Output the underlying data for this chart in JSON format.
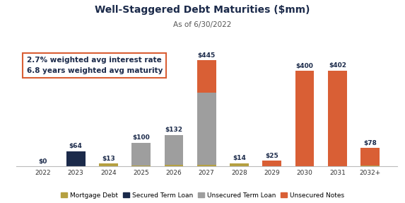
{
  "title": "Well-Staggered Debt Maturities ($mm)",
  "subtitle": "As of 6/30/2022",
  "categories": [
    "2022",
    "2023",
    "2024",
    "2025",
    "2026",
    "2027",
    "2028",
    "2029",
    "2030",
    "2031",
    "2032+"
  ],
  "mortgage_debt": [
    0,
    0,
    13,
    5,
    7,
    8,
    14,
    0,
    0,
    2,
    5
  ],
  "secured_term_loan": [
    0,
    64,
    0,
    0,
    0,
    0,
    0,
    0,
    0,
    0,
    0
  ],
  "unsecured_term_loan": [
    0,
    0,
    0,
    95,
    125,
    300,
    0,
    0,
    0,
    0,
    0
  ],
  "unsecured_notes": [
    0,
    0,
    0,
    0,
    0,
    137,
    0,
    25,
    400,
    400,
    73
  ],
  "bar_labels": [
    "$0",
    "$64",
    "$13",
    "$100",
    "$132",
    "$445",
    "$14",
    "$25",
    "$400",
    "$402",
    "$78"
  ],
  "colors": {
    "mortgage_debt": "#b5a040",
    "secured_term_loan": "#1b2a4a",
    "unsecured_term_loan": "#9e9e9e",
    "unsecured_notes": "#d95f35"
  },
  "legend_labels": [
    "Mortgage Debt",
    "Secured Term Loan",
    "Unsecured Term Loan",
    "Unsecured Notes"
  ],
  "annotation_text": "2.7% weighted avg interest rate\n6.8 years weighted avg maturity",
  "annotation_box_edgecolor": "#d95f35",
  "title_fontsize": 10,
  "subtitle_fontsize": 7.5,
  "label_fontsize": 6.5,
  "legend_fontsize": 6.5,
  "annotation_fontsize": 7.5,
  "ylim": [
    0,
    510
  ],
  "background_color": "#ffffff",
  "label_color": "#1b2a4a"
}
